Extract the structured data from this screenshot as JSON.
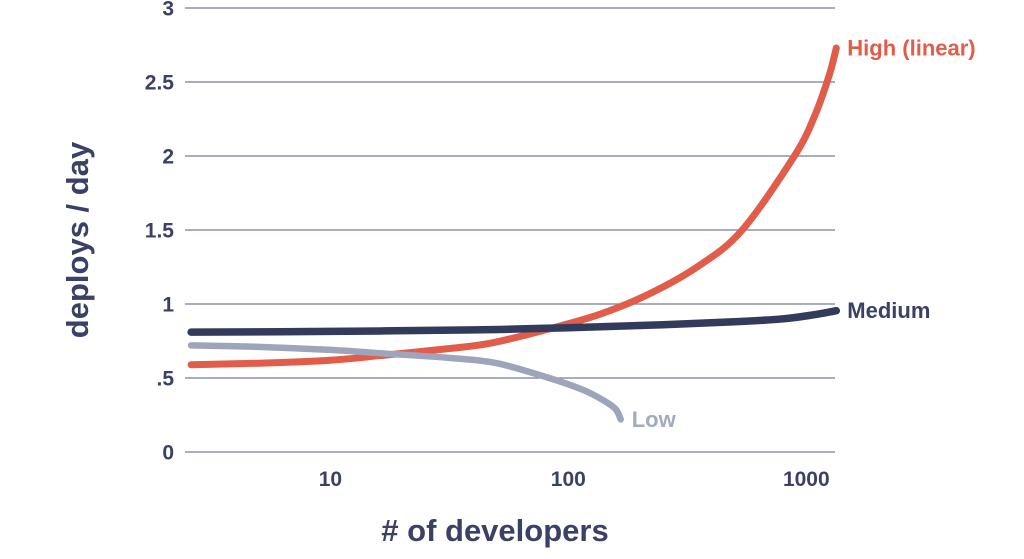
{
  "page": {
    "background_color": "#ffffff",
    "text_color": "#3b4166",
    "gridline_color": "#767c98"
  },
  "chart_data": {
    "type": "line",
    "title": "",
    "xlabel": "# of developers",
    "ylabel": "deploys / day",
    "x_scale": "log",
    "y_scale": "linear",
    "x_range": [
      2.45,
      1320
    ],
    "y_range": [
      0,
      3
    ],
    "grid": "horizontal-only",
    "legend_position": "end-of-line-labels",
    "x_ticks": [
      {
        "value": 10,
        "label": "10"
      },
      {
        "value": 100,
        "label": "100"
      },
      {
        "value": 1000,
        "label": "1000"
      }
    ],
    "y_ticks": [
      {
        "value": 0,
        "label": "0"
      },
      {
        "value": 0.5,
        "label": ".5"
      },
      {
        "value": 1,
        "label": "1"
      },
      {
        "value": 1.5,
        "label": "1.5"
      },
      {
        "value": 2,
        "label": "2"
      },
      {
        "value": 2.5,
        "label": "2.5"
      },
      {
        "value": 3,
        "label": "3"
      }
    ],
    "series": [
      {
        "name": "High (linear)",
        "color": "#e25c4a",
        "label_color": "#e25c4a",
        "stroke_width": 7,
        "points": [
          [
            2.6,
            0.59
          ],
          [
            5,
            0.6
          ],
          [
            10,
            0.62
          ],
          [
            17,
            0.655
          ],
          [
            32,
            0.7
          ],
          [
            47,
            0.735
          ],
          [
            78,
            0.82
          ],
          [
            135,
            0.93
          ],
          [
            220,
            1.07
          ],
          [
            355,
            1.26
          ],
          [
            538,
            1.5
          ],
          [
            891,
            2.0
          ],
          [
            1090,
            2.28
          ],
          [
            1250,
            2.55
          ],
          [
            1337,
            2.73
          ]
        ]
      },
      {
        "name": "Medium",
        "color": "#333b5c",
        "label_color": "#3b4166",
        "stroke_width": 7.5,
        "points": [
          [
            2.6,
            0.81
          ],
          [
            10,
            0.815
          ],
          [
            40,
            0.825
          ],
          [
            100,
            0.84
          ],
          [
            250,
            0.86
          ],
          [
            500,
            0.88
          ],
          [
            800,
            0.9
          ],
          [
            1100,
            0.93
          ],
          [
            1337,
            0.955
          ]
        ]
      },
      {
        "name": "Low",
        "color": "#9ea5ba",
        "label_color": "#a3aabf",
        "stroke_width": 6.5,
        "points": [
          [
            2.6,
            0.72
          ],
          [
            5,
            0.71
          ],
          [
            10,
            0.69
          ],
          [
            17,
            0.665
          ],
          [
            32,
            0.635
          ],
          [
            50,
            0.6
          ],
          [
            83,
            0.5
          ],
          [
            115,
            0.42
          ],
          [
            140,
            0.35
          ],
          [
            158,
            0.29
          ],
          [
            166,
            0.22
          ]
        ]
      }
    ]
  }
}
